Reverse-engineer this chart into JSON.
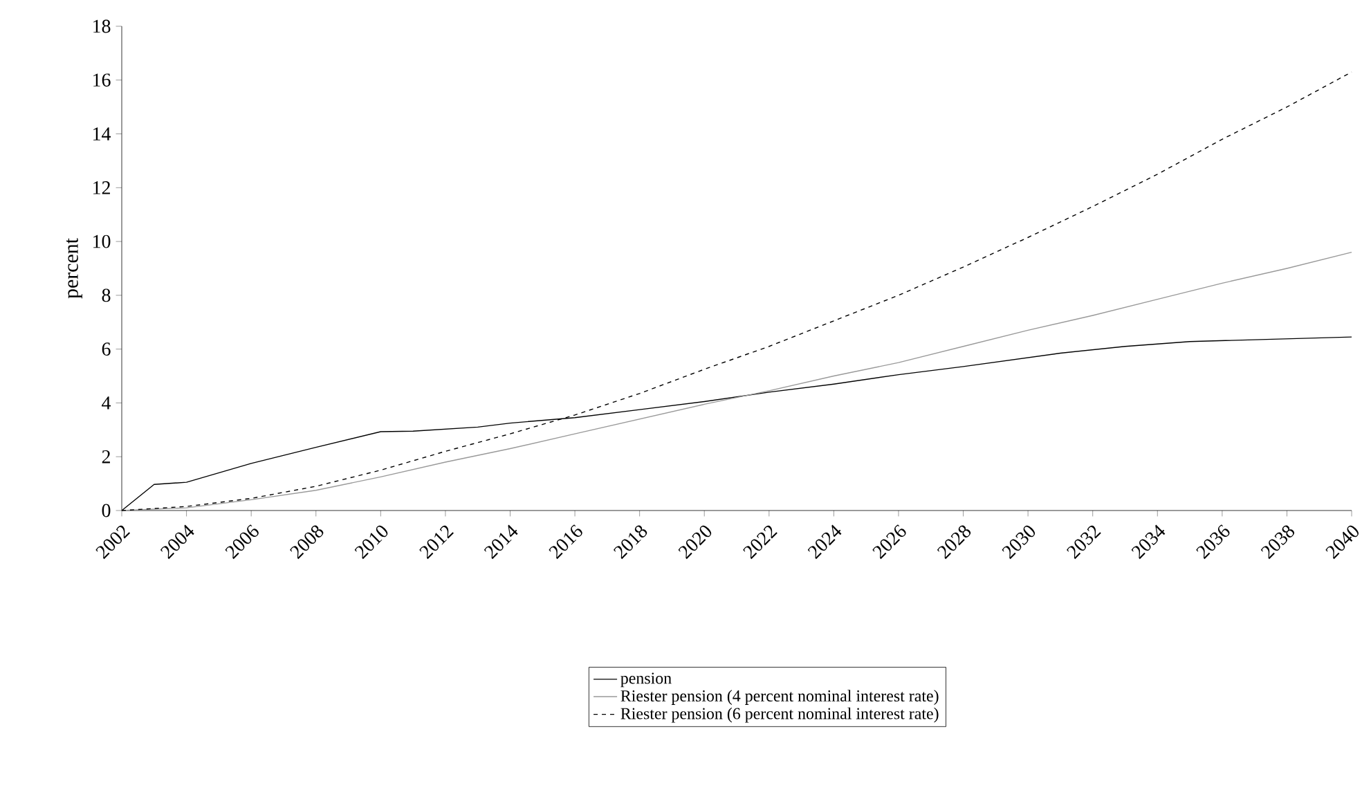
{
  "chart_data": {
    "type": "line",
    "ylabel": "percent",
    "xlim": [
      2002,
      2040
    ],
    "ylim": [
      0,
      18
    ],
    "xticks": [
      2002,
      2004,
      2006,
      2008,
      2010,
      2012,
      2014,
      2016,
      2018,
      2020,
      2022,
      2024,
      2026,
      2028,
      2030,
      2032,
      2034,
      2036,
      2038,
      2040
    ],
    "yticks": [
      0,
      2,
      4,
      6,
      8,
      10,
      12,
      14,
      16,
      18
    ],
    "legend": "bottom",
    "grid": false,
    "marker": "none",
    "series": [
      {
        "name": "pension",
        "color": "#000000",
        "line_style": "solid",
        "x": [
          2002,
          2003,
          2004,
          2006,
          2008,
          2010,
          2011,
          2013,
          2014,
          2016,
          2018,
          2020,
          2022,
          2024,
          2026,
          2028,
          2031,
          2033,
          2035,
          2040
        ],
        "values": [
          0,
          0.97,
          1.05,
          1.75,
          2.35,
          2.93,
          2.95,
          3.1,
          3.25,
          3.45,
          3.75,
          4.05,
          4.4,
          4.7,
          5.05,
          5.35,
          5.85,
          6.1,
          6.28,
          6.45
        ]
      },
      {
        "name": "Riester pension (4 percent nominal interest rate)",
        "color": "#999999",
        "line_style": "solid",
        "x": [
          2002,
          2004,
          2006,
          2008,
          2010,
          2012,
          2014,
          2016,
          2018,
          2020,
          2022,
          2024,
          2026,
          2028,
          2030,
          2032,
          2034,
          2036,
          2038,
          2040
        ],
        "values": [
          0,
          0.1,
          0.4,
          0.75,
          1.25,
          1.8,
          2.3,
          2.85,
          3.4,
          3.95,
          4.45,
          5.0,
          5.5,
          6.1,
          6.7,
          7.25,
          7.85,
          8.45,
          9.0,
          9.6
        ]
      },
      {
        "name": "Riester pension (6 percent nominal interest rate)",
        "color": "#000000",
        "line_style": "dashed",
        "x": [
          2002,
          2004,
          2006,
          2008,
          2010,
          2012,
          2014,
          2016,
          2018,
          2020,
          2022,
          2024,
          2026,
          2028,
          2030,
          2032,
          2034,
          2036,
          2038,
          2040
        ],
        "values": [
          0,
          0.15,
          0.45,
          0.9,
          1.5,
          2.2,
          2.85,
          3.55,
          4.35,
          5.25,
          6.1,
          7.05,
          8.0,
          9.05,
          10.15,
          11.3,
          12.5,
          13.8,
          15.0,
          16.3
        ]
      }
    ]
  }
}
